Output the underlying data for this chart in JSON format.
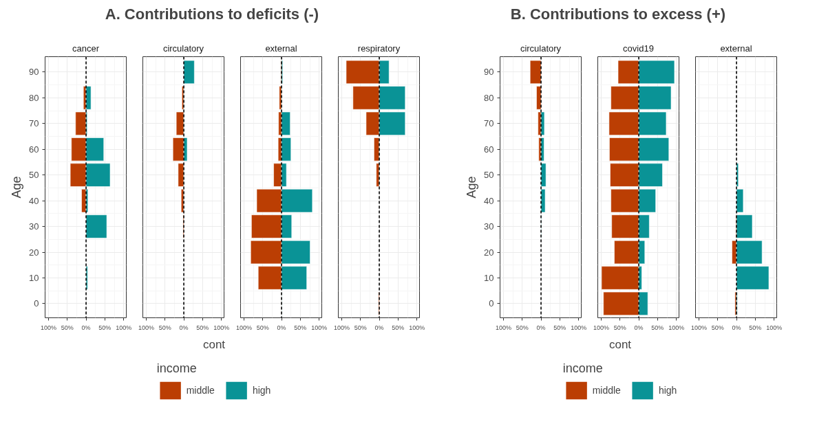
{
  "chart_data": [
    {
      "type": "bar",
      "orientation": "horizontal",
      "stacked": true,
      "title": "cancer",
      "annotations": [
        "A.  Contributions to deficits (-)"
      ],
      "ylabel": "Age",
      "x": [
        10,
        20,
        30,
        40,
        50,
        60,
        70,
        80
      ],
      "series": [
        {
          "color": "#bb3e03",
          "values": [
            null,
            null,
            null,
            -12,
            -42,
            -39,
            -28,
            -7
          ]
        },
        {
          "color": "#0a9396",
          "values": [
            4,
            null,
            55,
            5,
            64,
            47,
            3,
            13
          ]
        }
      ],
      "xlim": [
        -109,
        107
      ],
      "ylim": [
        -5.5,
        96
      ],
      "xticks": [
        {
          "value": -100,
          "label": "100%"
        },
        {
          "value": -50,
          "label": "50%"
        },
        {
          "value": 0,
          "label": "0%"
        },
        {
          "value": 50,
          "label": "50%"
        },
        {
          "value": 100,
          "label": "100%"
        }
      ],
      "yticks": [
        0,
        10,
        20,
        30,
        40,
        50,
        60,
        70,
        80,
        90
      ],
      "ref_lines": [
        {
          "axis": "x",
          "value": 0,
          "line_style": "dashed",
          "color": "#000000"
        }
      ],
      "grid": true
    },
    {
      "type": "bar",
      "orientation": "horizontal",
      "stacked": true,
      "title": "circulatory",
      "xlabel": "cont",
      "legend_title": "income",
      "legend": "bottom",
      "x": [
        30,
        40,
        50,
        60,
        70,
        80,
        90
      ],
      "series": [
        {
          "name": "middle",
          "color": "#bb3e03",
          "values": [
            -2,
            -7,
            -15,
            -29,
            -20,
            -5,
            null
          ]
        },
        {
          "name": "high",
          "color": "#0a9396",
          "values": [
            null,
            1,
            1,
            9,
            1,
            1,
            28
          ]
        }
      ],
      "xlim": [
        -109,
        107
      ],
      "ylim": [
        -5.5,
        96
      ],
      "xticks": [
        {
          "value": -100,
          "label": "100%"
        },
        {
          "value": -50,
          "label": "50%"
        },
        {
          "value": 0,
          "label": "0%"
        },
        {
          "value": 50,
          "label": "50%"
        },
        {
          "value": 100,
          "label": "100%"
        }
      ],
      "yticks": [
        0,
        10,
        20,
        30,
        40,
        50,
        60,
        70,
        80,
        90
      ],
      "tick_labels": "x",
      "ref_lines": [
        {
          "axis": "x",
          "value": 0,
          "line_style": "dashed",
          "color": "#000000"
        }
      ],
      "grid": true
    },
    {
      "type": "bar",
      "orientation": "horizontal",
      "stacked": true,
      "title": "external",
      "x": [
        0,
        10,
        20,
        30,
        40,
        50,
        60,
        70,
        80,
        90
      ],
      "series": [
        {
          "color": "#bb3e03",
          "values": [
            -1,
            -62,
            -82,
            -80,
            -66,
            -21,
            -9,
            -8,
            -6,
            -2
          ]
        },
        {
          "color": "#0a9396",
          "values": [
            1,
            67,
            76,
            27,
            82,
            13,
            25,
            23,
            1,
            3
          ]
        }
      ],
      "xlim": [
        -109,
        107
      ],
      "ylim": [
        -5.5,
        96
      ],
      "xticks": [
        {
          "value": -100,
          "label": "100%"
        },
        {
          "value": -50,
          "label": "50%"
        },
        {
          "value": 0,
          "label": "0%"
        },
        {
          "value": 50,
          "label": "50%"
        },
        {
          "value": 100,
          "label": "100%"
        }
      ],
      "yticks": [
        0,
        10,
        20,
        30,
        40,
        50,
        60,
        70,
        80,
        90
      ],
      "tick_labels": "x",
      "ref_lines": [
        {
          "axis": "x",
          "value": 0,
          "line_style": "dashed",
          "color": "#000000"
        }
      ],
      "grid": true
    },
    {
      "type": "bar",
      "orientation": "horizontal",
      "stacked": true,
      "title": "respiratory",
      "x": [
        0,
        50,
        60,
        70,
        80,
        90
      ],
      "series": [
        {
          "color": "#bb3e03",
          "values": [
            -2,
            -8,
            -14,
            -35,
            -70,
            -88
          ]
        },
        {
          "color": "#0a9396",
          "values": [
            null,
            1,
            1,
            69,
            69,
            26
          ]
        }
      ],
      "xlim": [
        -109,
        107
      ],
      "ylim": [
        -5.5,
        96
      ],
      "xticks": [
        {
          "value": -100,
          "label": "100%"
        },
        {
          "value": -50,
          "label": "50%"
        },
        {
          "value": 0,
          "label": "0%"
        },
        {
          "value": 50,
          "label": "50%"
        },
        {
          "value": 100,
          "label": "100%"
        }
      ],
      "yticks": [
        0,
        10,
        20,
        30,
        40,
        50,
        60,
        70,
        80,
        90
      ],
      "tick_labels": "x",
      "ref_lines": [
        {
          "axis": "x",
          "value": 0,
          "line_style": "dashed",
          "color": "#000000"
        }
      ],
      "grid": true
    },
    {
      "type": "bar",
      "orientation": "horizontal",
      "stacked": true,
      "title": "circulatory",
      "annotations": [
        "B.  Contributions to excess (+)"
      ],
      "ylabel": "Age",
      "x": [
        30,
        40,
        50,
        60,
        70,
        80,
        90
      ],
      "series": [
        {
          "color": "#bb3e03",
          "values": [
            null,
            null,
            null,
            -6,
            -8,
            -12,
            -29
          ]
        },
        {
          "color": "#0a9396",
          "values": [
            1,
            11,
            13,
            8,
            9,
            null,
            null
          ]
        }
      ],
      "xlim": [
        -109,
        107
      ],
      "ylim": [
        -5.5,
        96
      ],
      "xticks": [
        {
          "value": -100,
          "label": "100%"
        },
        {
          "value": -50,
          "label": "50%"
        },
        {
          "value": 0,
          "label": "0%"
        },
        {
          "value": 50,
          "label": "50%"
        },
        {
          "value": 100,
          "label": "100%"
        }
      ],
      "yticks": [
        0,
        10,
        20,
        30,
        40,
        50,
        60,
        70,
        80,
        90
      ],
      "ref_lines": [
        {
          "axis": "x",
          "value": 0,
          "line_style": "dashed",
          "color": "#000000"
        }
      ],
      "grid": true
    },
    {
      "type": "bar",
      "orientation": "horizontal",
      "stacked": true,
      "title": "covid19",
      "xlabel": "cont",
      "legend_title": "income",
      "legend": "bottom",
      "x": [
        0,
        10,
        20,
        30,
        40,
        50,
        60,
        70,
        80,
        90
      ],
      "series": [
        {
          "name": "middle",
          "color": "#bb3e03",
          "values": [
            -94,
            -99,
            -65,
            -72,
            -74,
            -76,
            -78,
            -79,
            -74,
            -55
          ]
        },
        {
          "name": "high",
          "color": "#0a9396",
          "values": [
            24,
            8,
            16,
            28,
            45,
            63,
            80,
            73,
            86,
            95
          ]
        }
      ],
      "xlim": [
        -109,
        107
      ],
      "ylim": [
        -5.5,
        96
      ],
      "xticks": [
        {
          "value": -100,
          "label": "100%"
        },
        {
          "value": -50,
          "label": "50%"
        },
        {
          "value": 0,
          "label": "0%"
        },
        {
          "value": 50,
          "label": "50%"
        },
        {
          "value": 100,
          "label": "100%"
        }
      ],
      "yticks": [
        0,
        10,
        20,
        30,
        40,
        50,
        60,
        70,
        80,
        90
      ],
      "tick_labels": "x",
      "ref_lines": [
        {
          "axis": "x",
          "value": 0,
          "line_style": "dashed",
          "color": "#000000"
        }
      ],
      "grid": true
    },
    {
      "type": "bar",
      "orientation": "horizontal",
      "stacked": true,
      "title": "external",
      "x": [
        0,
        10,
        20,
        30,
        40,
        50
      ],
      "series": [
        {
          "color": "#bb3e03",
          "values": [
            -4,
            null,
            -12,
            -2,
            null,
            null
          ]
        },
        {
          "color": "#0a9396",
          "values": [
            2,
            86,
            68,
            42,
            18,
            5
          ]
        }
      ],
      "xlim": [
        -109,
        107
      ],
      "ylim": [
        -5.5,
        96
      ],
      "xticks": [
        {
          "value": -100,
          "label": "100%"
        },
        {
          "value": -50,
          "label": "50%"
        },
        {
          "value": 0,
          "label": "0%"
        },
        {
          "value": 50,
          "label": "50%"
        },
        {
          "value": 100,
          "label": "100%"
        }
      ],
      "yticks": [
        0,
        10,
        20,
        30,
        40,
        50,
        60,
        70,
        80,
        90
      ],
      "tick_labels": "x",
      "ref_lines": [
        {
          "axis": "x",
          "value": 0,
          "line_style": "dashed",
          "color": "#000000"
        }
      ],
      "grid": true
    }
  ]
}
